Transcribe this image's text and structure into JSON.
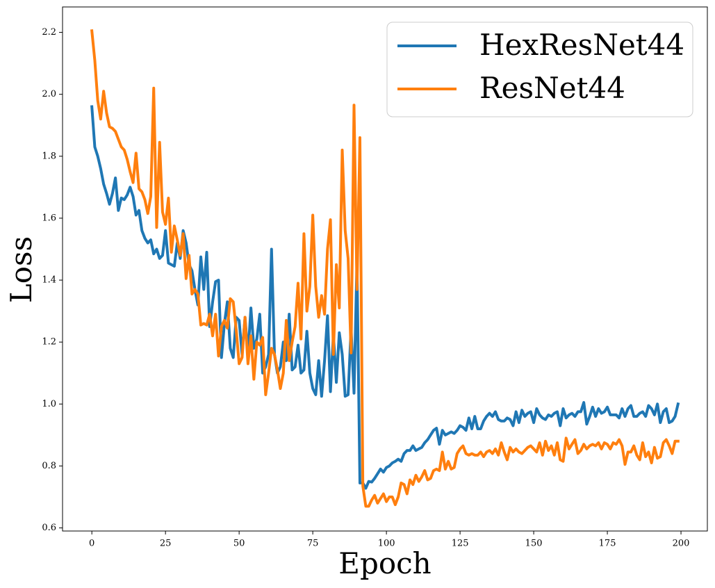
{
  "chart_data": {
    "type": "line",
    "xlabel": "Epoch",
    "ylabel": "Loss",
    "x": [
      0,
      1,
      2,
      3,
      4,
      5,
      6,
      7,
      8,
      9,
      10,
      11,
      12,
      13,
      14,
      15,
      16,
      17,
      18,
      19,
      20,
      21,
      22,
      23,
      24,
      25,
      26,
      27,
      28,
      29,
      30,
      31,
      32,
      33,
      34,
      35,
      36,
      37,
      38,
      39,
      40,
      41,
      42,
      43,
      44,
      45,
      46,
      47,
      48,
      49,
      50,
      51,
      52,
      53,
      54,
      55,
      56,
      57,
      58,
      59,
      60,
      61,
      62,
      63,
      64,
      65,
      66,
      67,
      68,
      69,
      70,
      71,
      72,
      73,
      74,
      75,
      76,
      77,
      78,
      79,
      80,
      81,
      82,
      83,
      84,
      85,
      86,
      87,
      88,
      89,
      90,
      91,
      92,
      93,
      94,
      95,
      96,
      97,
      98,
      99,
      100,
      101,
      102,
      103,
      104,
      105,
      106,
      107,
      108,
      109,
      110,
      111,
      112,
      113,
      114,
      115,
      116,
      117,
      118,
      119,
      120,
      121,
      122,
      123,
      124,
      125,
      126,
      127,
      128,
      129,
      130,
      131,
      132,
      133,
      134,
      135,
      136,
      137,
      138,
      139,
      140,
      141,
      142,
      143,
      144,
      145,
      146,
      147,
      148,
      149,
      150,
      151,
      152,
      153,
      154,
      155,
      156,
      157,
      158,
      159,
      160,
      161,
      162,
      163,
      164,
      165,
      166,
      167,
      168,
      169,
      170,
      171,
      172,
      173,
      174,
      175,
      176,
      177,
      178,
      179,
      180,
      181,
      182,
      183,
      184,
      185,
      186,
      187,
      188,
      189,
      190,
      191,
      192,
      193,
      194,
      195,
      196,
      197,
      198,
      199
    ],
    "series": [
      {
        "name": "HexResNet44",
        "color": "#1f77b4",
        "values": [
          1.96,
          1.83,
          1.8,
          1.76,
          1.71,
          1.68,
          1.645,
          1.68,
          1.73,
          1.625,
          1.665,
          1.66,
          1.675,
          1.7,
          1.67,
          1.61,
          1.625,
          1.56,
          1.535,
          1.52,
          1.53,
          1.485,
          1.5,
          1.47,
          1.48,
          1.56,
          1.455,
          1.45,
          1.445,
          1.52,
          1.47,
          1.56,
          1.52,
          1.45,
          1.43,
          1.37,
          1.32,
          1.475,
          1.37,
          1.49,
          1.25,
          1.33,
          1.395,
          1.4,
          1.15,
          1.26,
          1.33,
          1.18,
          1.15,
          1.28,
          1.27,
          1.16,
          1.28,
          1.16,
          1.31,
          1.18,
          1.21,
          1.29,
          1.1,
          1.12,
          1.16,
          1.5,
          1.16,
          1.1,
          1.12,
          1.2,
          1.14,
          1.29,
          1.11,
          1.12,
          1.19,
          1.1,
          1.11,
          1.235,
          1.1,
          1.05,
          1.03,
          1.14,
          1.025,
          1.14,
          1.285,
          1.04,
          1.225,
          1.07,
          1.23,
          1.16,
          1.025,
          1.03,
          1.245,
          1.035,
          1.46,
          0.745,
          0.745,
          0.728,
          0.75,
          0.748,
          0.76,
          0.775,
          0.79,
          0.78,
          0.795,
          0.8,
          0.81,
          0.815,
          0.822,
          0.815,
          0.84,
          0.85,
          0.85,
          0.865,
          0.85,
          0.855,
          0.86,
          0.875,
          0.885,
          0.9,
          0.915,
          0.922,
          0.87,
          0.915,
          0.9,
          0.905,
          0.91,
          0.905,
          0.915,
          0.93,
          0.925,
          0.915,
          0.955,
          0.92,
          0.96,
          0.92,
          0.92,
          0.945,
          0.96,
          0.97,
          0.96,
          0.975,
          0.95,
          0.945,
          0.945,
          0.955,
          0.95,
          0.93,
          0.975,
          0.94,
          0.98,
          0.96,
          0.97,
          0.975,
          0.94,
          0.985,
          0.965,
          0.955,
          0.95,
          0.965,
          0.96,
          0.97,
          0.975,
          0.93,
          0.985,
          0.955,
          0.965,
          0.97,
          0.96,
          0.975,
          0.975,
          1.005,
          0.935,
          0.96,
          0.99,
          0.96,
          0.985,
          0.97,
          0.975,
          0.99,
          0.965,
          0.965,
          0.965,
          0.955,
          0.985,
          0.96,
          0.985,
          0.995,
          0.96,
          0.96,
          0.97,
          0.975,
          0.96,
          0.995,
          0.985,
          0.965,
          1.0,
          0.94,
          0.975,
          0.985,
          0.94,
          0.945,
          0.96,
          1.0
        ]
      },
      {
        "name": "ResNet44",
        "color": "#ff7f0e",
        "values": [
          2.205,
          2.11,
          1.98,
          1.92,
          2.01,
          1.94,
          1.895,
          1.89,
          1.88,
          1.855,
          1.83,
          1.82,
          1.79,
          1.75,
          1.715,
          1.81,
          1.695,
          1.685,
          1.66,
          1.615,
          1.67,
          2.02,
          1.57,
          1.845,
          1.62,
          1.58,
          1.665,
          1.49,
          1.575,
          1.53,
          1.48,
          1.55,
          1.405,
          1.48,
          1.355,
          1.37,
          1.355,
          1.255,
          1.26,
          1.255,
          1.29,
          1.22,
          1.29,
          1.155,
          1.25,
          1.27,
          1.245,
          1.34,
          1.33,
          1.24,
          1.13,
          1.15,
          1.28,
          1.13,
          1.22,
          1.08,
          1.2,
          1.19,
          1.215,
          1.03,
          1.1,
          1.18,
          1.16,
          1.11,
          1.05,
          1.1,
          1.27,
          1.14,
          1.2,
          1.25,
          1.39,
          1.21,
          1.55,
          1.3,
          1.38,
          1.61,
          1.38,
          1.28,
          1.35,
          1.29,
          1.5,
          1.595,
          1.16,
          1.45,
          1.31,
          1.82,
          1.56,
          1.47,
          1.165,
          1.965,
          1.37,
          1.86,
          0.735,
          0.67,
          0.67,
          0.69,
          0.705,
          0.68,
          0.695,
          0.71,
          0.685,
          0.7,
          0.7,
          0.675,
          0.7,
          0.745,
          0.74,
          0.71,
          0.755,
          0.74,
          0.77,
          0.75,
          0.765,
          0.785,
          0.755,
          0.76,
          0.785,
          0.79,
          0.785,
          0.845,
          0.79,
          0.815,
          0.79,
          0.795,
          0.84,
          0.855,
          0.865,
          0.84,
          0.835,
          0.84,
          0.835,
          0.835,
          0.845,
          0.83,
          0.845,
          0.85,
          0.84,
          0.855,
          0.835,
          0.875,
          0.845,
          0.82,
          0.86,
          0.845,
          0.855,
          0.845,
          0.84,
          0.85,
          0.86,
          0.865,
          0.855,
          0.845,
          0.875,
          0.835,
          0.88,
          0.85,
          0.865,
          0.835,
          0.875,
          0.82,
          0.815,
          0.89,
          0.855,
          0.87,
          0.885,
          0.84,
          0.85,
          0.87,
          0.855,
          0.865,
          0.87,
          0.865,
          0.875,
          0.855,
          0.875,
          0.87,
          0.855,
          0.875,
          0.87,
          0.885,
          0.865,
          0.805,
          0.845,
          0.845,
          0.865,
          0.835,
          0.82,
          0.875,
          0.83,
          0.845,
          0.81,
          0.86,
          0.825,
          0.83,
          0.875,
          0.885,
          0.865,
          0.84,
          0.88,
          0.88
        ]
      }
    ],
    "xlim": [
      -9.95,
      208.95
    ],
    "xticks": [
      0,
      25,
      50,
      75,
      100,
      125,
      150,
      175,
      200
    ],
    "ylim": [
      0.59,
      2.282
    ],
    "yticks": [
      0.6,
      0.8,
      {
        "value": 1,
        "label": "1.0"
      },
      1.2,
      1.4,
      1.6,
      1.8,
      {
        "value": 2,
        "label": "2.0"
      },
      2.2
    ],
    "legend": "upper right"
  }
}
